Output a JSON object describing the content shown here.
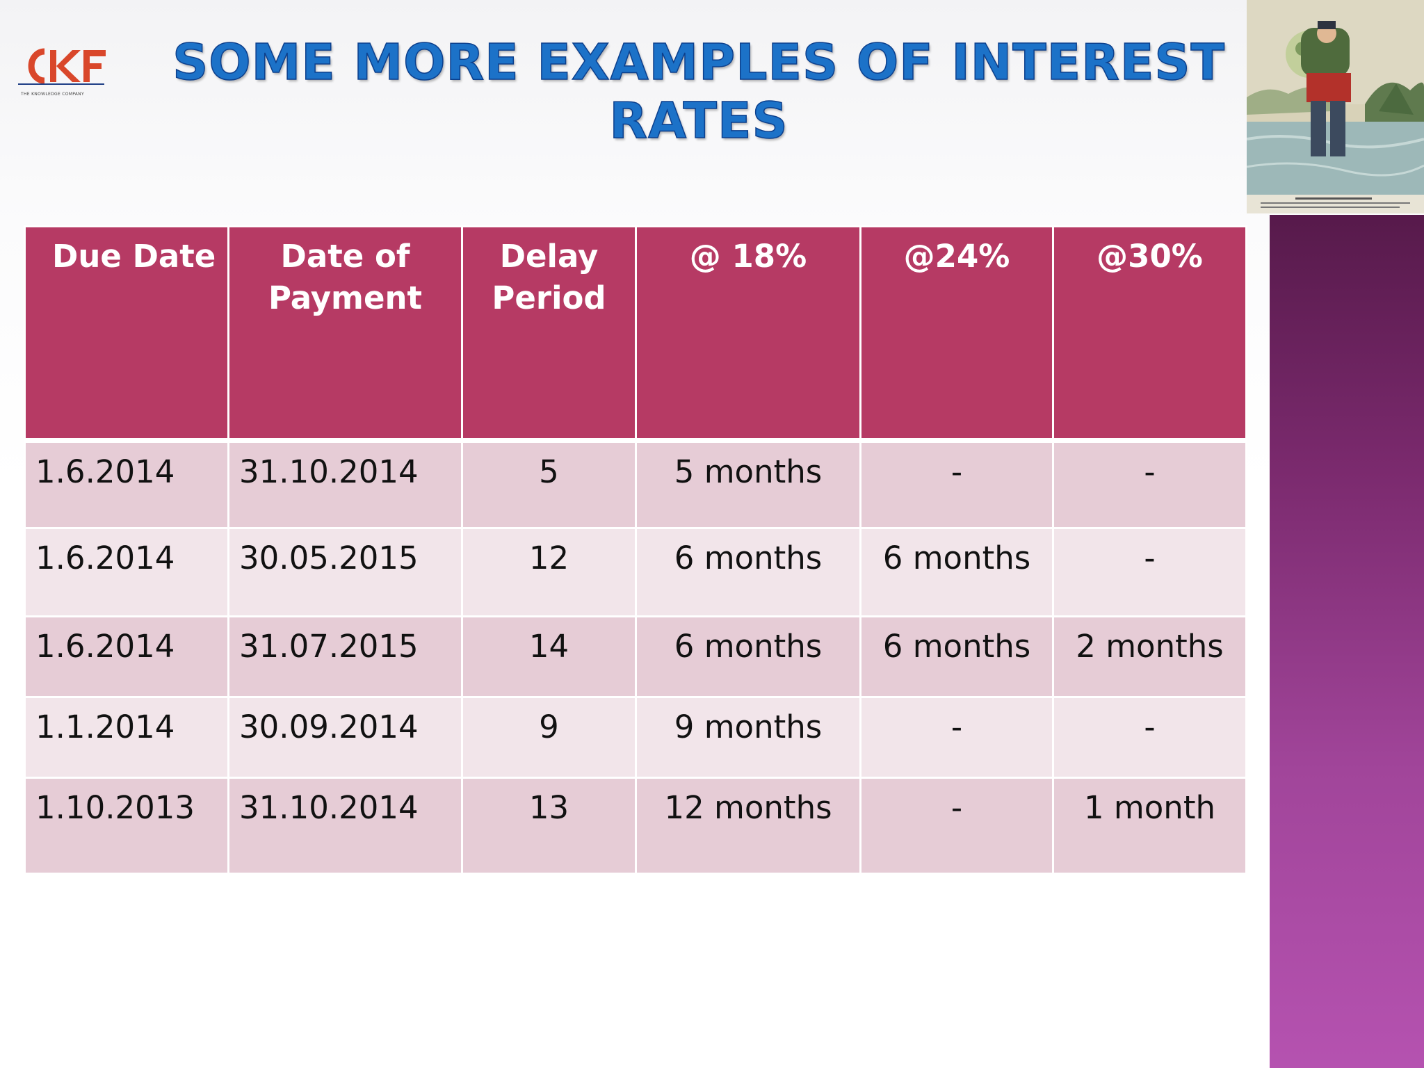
{
  "slide": {
    "title": "Some more examples of interest rates",
    "logo": {
      "letters": "CKF",
      "tagline": "THE KNOWLEDGE COMPANY"
    },
    "picture": {
      "icon": "vintage-illustration-man-carrying-bundle-wading-river"
    }
  },
  "colors": {
    "title": "#1c72c8",
    "header_bg": "#b63a64",
    "row_odd": "#e6ccd6",
    "row_even": "#f2e5ea",
    "side_bar_top": "#571a4b",
    "side_bar_bottom": "#b552b0",
    "logo_red": "#d9472b"
  },
  "table": {
    "columns": [
      "Due Date",
      "Date of Payment",
      "Delay Period",
      "@ 18%",
      "@24%",
      "@30%"
    ],
    "rows": [
      [
        "1.6.2014",
        "31.10.2014",
        "5",
        "5 months",
        "-",
        "-"
      ],
      [
        "1.6.2014",
        "30.05.2015",
        "12",
        "6 months",
        "6 months",
        "-"
      ],
      [
        "1.6.2014",
        "31.07.2015",
        "14",
        "6 months",
        "6 months",
        "2 months"
      ],
      [
        "1.1.2014",
        "30.09.2014",
        "9",
        "9 months",
        "-",
        "-"
      ],
      [
        "1.10.2013",
        "31.10.2014",
        "13",
        "12 months",
        "-",
        "1 month"
      ]
    ]
  }
}
